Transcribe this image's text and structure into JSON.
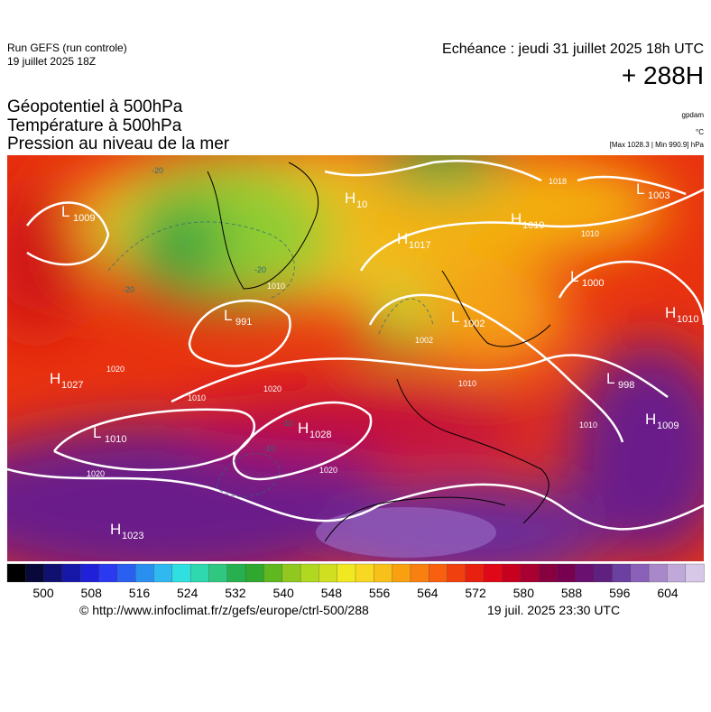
{
  "header": {
    "run": "Run GEFS (run controle)",
    "date": "19 juillet 2025 18Z",
    "echeance": "Echéance : jeudi 31 juillet 2025 18h UTC",
    "lead": "+ 288H"
  },
  "layers": [
    "Géopotentiel à 500hPa",
    "Température à 500hPa",
    "Pression au niveau de la mer"
  ],
  "units": {
    "geo": "gpdam",
    "temp": "°C",
    "pressure": "[Max 1028.3 | Min 990.9] hPa"
  },
  "centers": [
    {
      "kind": "L",
      "value": "1009"
    },
    {
      "kind": "H",
      "value": "10"
    },
    {
      "kind": "H",
      "value": "1017"
    },
    {
      "kind": "H",
      "value": "1019"
    },
    {
      "kind": "L",
      "value": "1003"
    },
    {
      "kind": "L",
      "value": "1000"
    },
    {
      "kind": "L",
      "value": "991"
    },
    {
      "kind": "L",
      "value": "1002"
    },
    {
      "kind": "H",
      "value": "1010"
    },
    {
      "kind": "H",
      "value": "1027"
    },
    {
      "kind": "L",
      "value": "998"
    },
    {
      "kind": "H",
      "value": "1009"
    },
    {
      "kind": "L",
      "value": "1010"
    },
    {
      "kind": "H",
      "value": "1028"
    },
    {
      "kind": "H",
      "value": "1023"
    }
  ],
  "isobar_labels": [
    "1010",
    "1010",
    "1020",
    "1020",
    "1020",
    "1020",
    "1010",
    "1010",
    "1018",
    "1010",
    "1002"
  ],
  "isotherm_labels": [
    "-20",
    "-20",
    "-20",
    "-10",
    "-10"
  ],
  "colorbar": {
    "ticks": [
      "500",
      "508",
      "516",
      "524",
      "532",
      "540",
      "548",
      "556",
      "564",
      "572",
      "580",
      "588",
      "596",
      "604"
    ]
  },
  "footer": {
    "url": "© http://www.infoclimat.fr/z/gefs/europe/ctrl-500/288",
    "time": "19 juil. 2025 23:30 UTC"
  }
}
